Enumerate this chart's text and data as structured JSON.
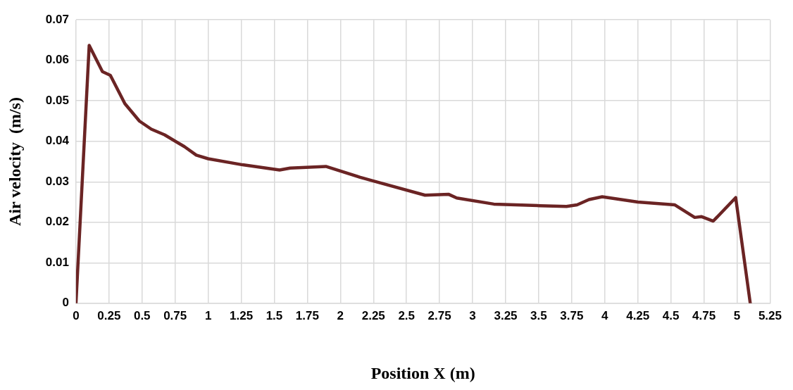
{
  "chart_data": {
    "type": "line",
    "xlabel": "Position X (m)",
    "ylabel": "Air velocity  (m/s)",
    "x": [
      0,
      0.1,
      0.2,
      0.26,
      0.37,
      0.48,
      0.57,
      0.67,
      0.82,
      0.91,
      1.0,
      1.26,
      1.54,
      1.62,
      1.89,
      2.15,
      2.25,
      2.64,
      2.82,
      2.88,
      3.16,
      3.51,
      3.71,
      3.79,
      3.88,
      3.98,
      4.25,
      4.53,
      4.68,
      4.73,
      4.82,
      4.99,
      5.1
    ],
    "series": [
      {
        "color": "#6b2424",
        "values": [
          0,
          0.0637,
          0.0572,
          0.0563,
          0.0493,
          0.045,
          0.043,
          0.0416,
          0.0387,
          0.0366,
          0.0357,
          0.0342,
          0.0329,
          0.0334,
          0.0338,
          0.0311,
          0.0302,
          0.0267,
          0.0269,
          0.026,
          0.0245,
          0.0241,
          0.0239,
          0.0243,
          0.0256,
          0.0263,
          0.025,
          0.0243,
          0.0212,
          0.0214,
          0.0203,
          0.0261,
          0
        ]
      }
    ],
    "xlim": [
      0,
      5.25
    ],
    "xticks": [
      0,
      0.25,
      0.5,
      0.75,
      1,
      1.25,
      1.5,
      1.75,
      2,
      2.25,
      2.5,
      2.75,
      3,
      3.25,
      3.5,
      3.75,
      4,
      4.25,
      4.5,
      4.75,
      5,
      5.25
    ],
    "ylim": [
      0,
      0.07
    ],
    "yticks": [
      0,
      0.01,
      0.02,
      0.03,
      0.04,
      0.05,
      0.06,
      0.07
    ],
    "grid": true,
    "legend": false,
    "marker": "none",
    "line_style": "solid"
  }
}
